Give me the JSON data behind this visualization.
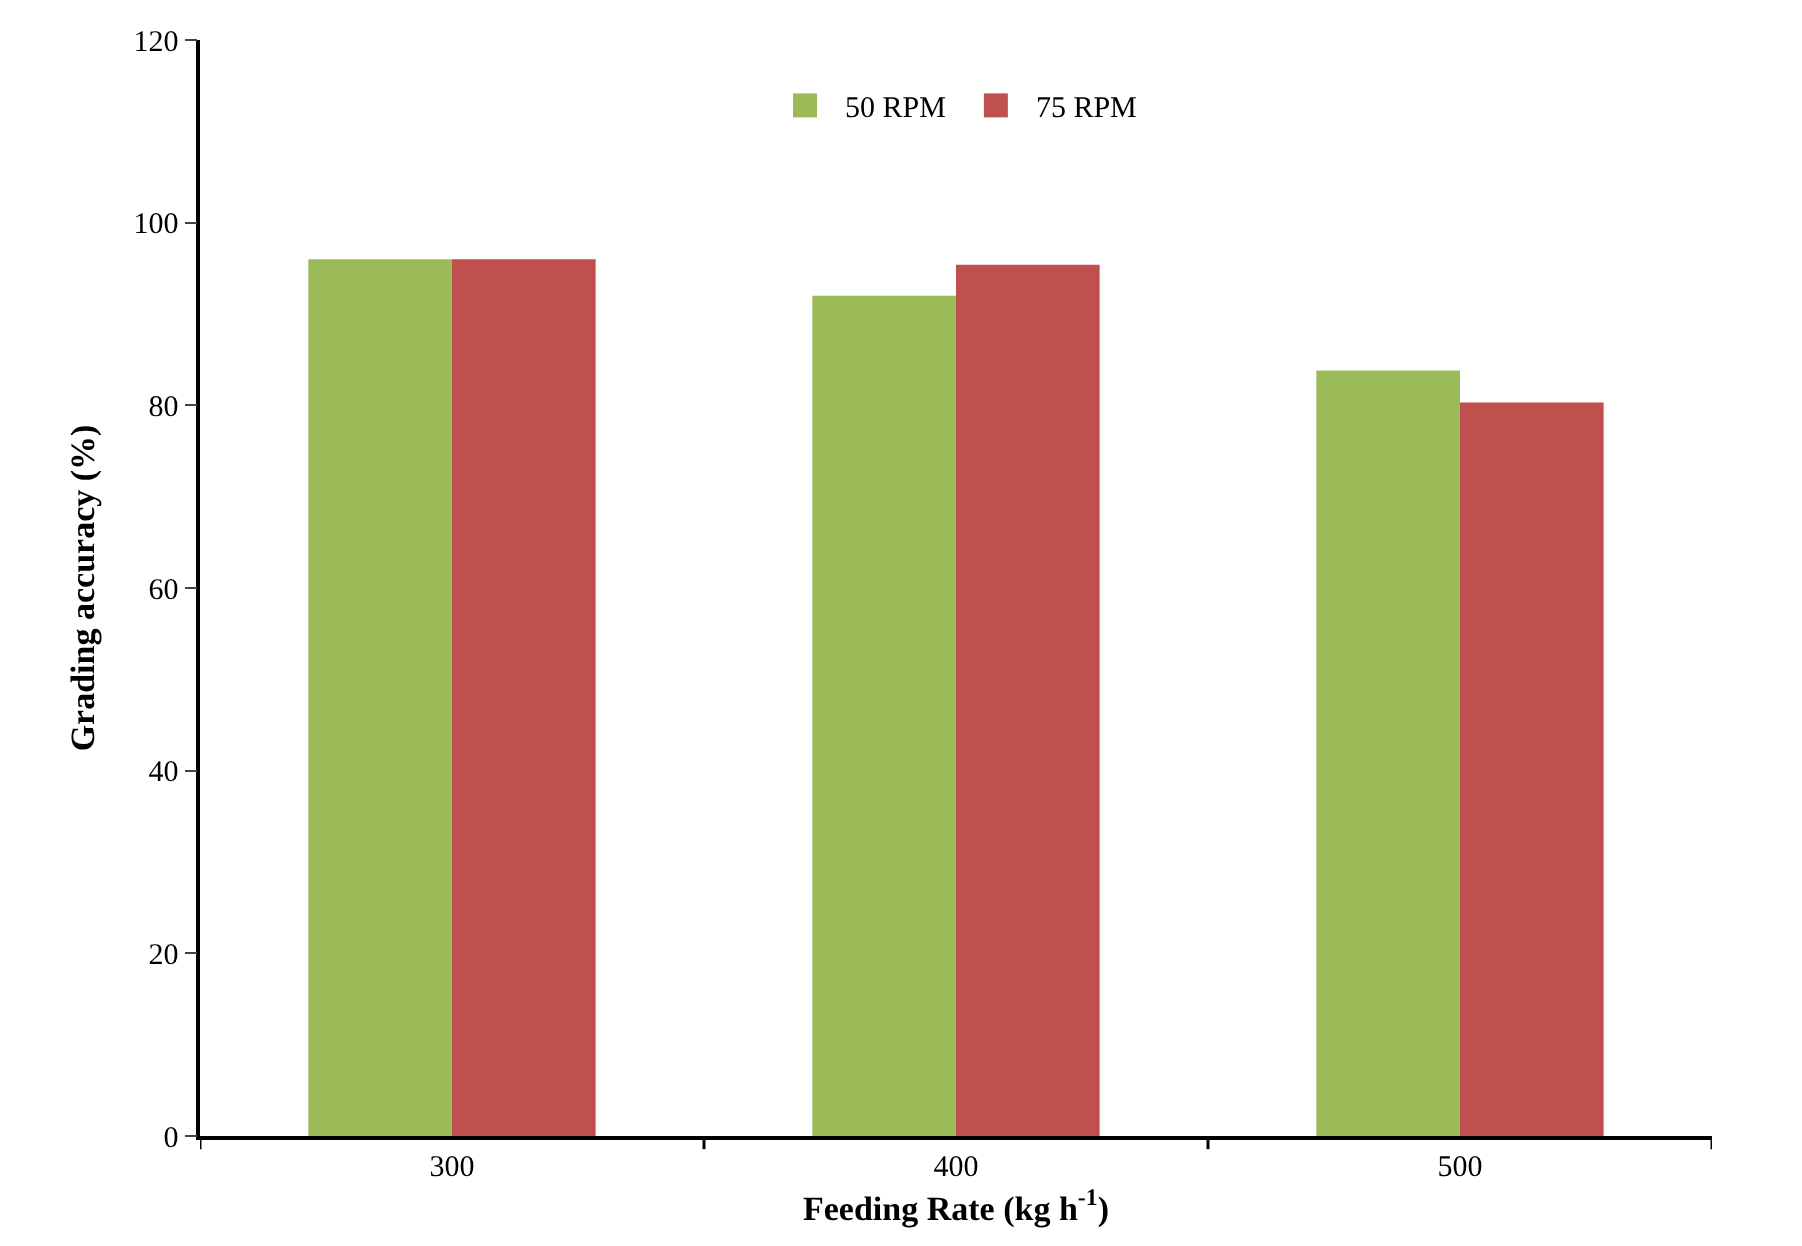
{
  "chart_data": {
    "type": "bar",
    "xlabel": "Feeding Rate (kg h$^{-1}$)",
    "ylabel": "Grading accuracy (%)",
    "categories": [
      "300",
      "400",
      "500"
    ],
    "series": [
      {
        "name": "50 RPM",
        "color": "#9bbb59",
        "values": [
          96,
          92,
          83.8
        ]
      },
      {
        "name": "75 RPM",
        "color": "#c0504d",
        "values": [
          96,
          95.4,
          80.3
        ]
      }
    ],
    "ylim": [
      0,
      120
    ],
    "yticks": [
      0,
      20,
      40,
      60,
      80,
      100,
      120
    ],
    "legend": "top"
  }
}
